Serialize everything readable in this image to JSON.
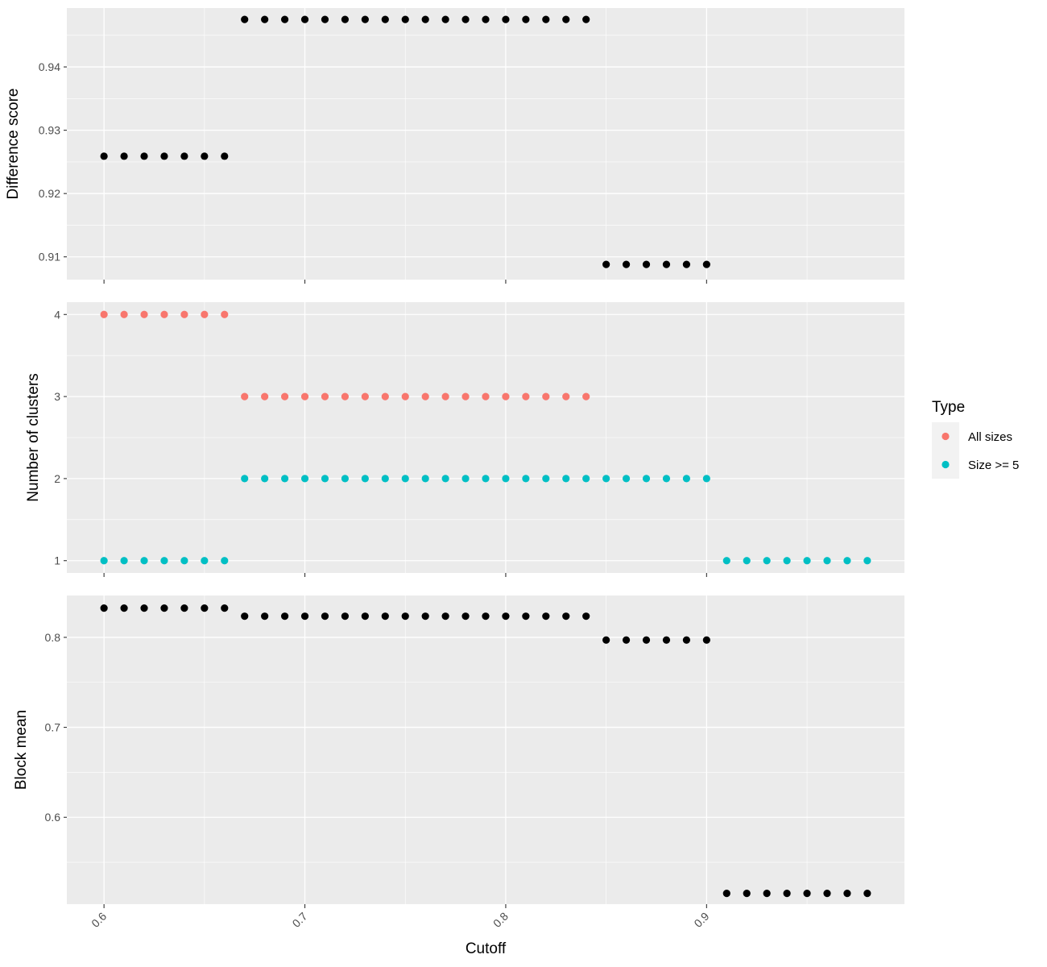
{
  "chart_data": {
    "type": "scatter",
    "x_label": "Cutoff",
    "x_ticks": [
      0.6,
      0.7,
      0.8,
      0.9
    ],
    "x_tick_labels": [
      "0.6",
      "0.7",
      "0.8",
      "0.9"
    ],
    "x_lim": [
      0.5815,
      0.9985
    ],
    "grid": true,
    "legend": {
      "title": "Type",
      "placement": "right",
      "entries": [
        {
          "label": "All sizes",
          "color": "#F8766D"
        },
        {
          "label": "Size >= 5",
          "color": "#00BFC4"
        }
      ]
    },
    "panels": [
      {
        "id": "difference",
        "ylabel": "Difference score",
        "ylim": [
          0.9064,
          0.9493
        ],
        "y_ticks": [
          0.91,
          0.92,
          0.93,
          0.94
        ],
        "y_tick_labels": [
          "0.91",
          "0.92",
          "0.93",
          "0.94"
        ],
        "series": [
          {
            "color": "#000000",
            "segments": [
              {
                "x_from": 0.6,
                "x_to": 0.66,
                "y": 0.9259
              },
              {
                "x_from": 0.67,
                "x_to": 0.84,
                "y": 0.9475
              },
              {
                "x_from": 0.85,
                "x_to": 0.9,
                "y": 0.9088
              }
            ]
          }
        ]
      },
      {
        "id": "clusters",
        "ylabel": "Number of clusters",
        "ylim": [
          0.85,
          4.15
        ],
        "y_ticks": [
          1,
          2,
          3,
          4
        ],
        "y_tick_labels": [
          "1",
          "2",
          "3",
          "4"
        ],
        "series": [
          {
            "name": "All sizes",
            "color": "#F8766D",
            "segments": [
              {
                "x_from": 0.6,
                "x_to": 0.66,
                "y": 4
              },
              {
                "x_from": 0.67,
                "x_to": 0.84,
                "y": 3
              }
            ]
          },
          {
            "name": "Size >= 5",
            "color": "#00BFC4",
            "segments": [
              {
                "x_from": 0.6,
                "x_to": 0.66,
                "y": 1
              },
              {
                "x_from": 0.67,
                "x_to": 0.9,
                "y": 2
              },
              {
                "x_from": 0.91,
                "x_to": 0.98,
                "y": 1
              }
            ]
          }
        ]
      },
      {
        "id": "blockmean",
        "ylabel": "Block mean",
        "ylim": [
          0.5035,
          0.8465
        ],
        "y_ticks": [
          0.6,
          0.7,
          0.8
        ],
        "y_tick_labels": [
          "0.6",
          "0.7",
          "0.8"
        ],
        "series": [
          {
            "color": "#000000",
            "segments": [
              {
                "x_from": 0.6,
                "x_to": 0.66,
                "y": 0.8325
              },
              {
                "x_from": 0.67,
                "x_to": 0.84,
                "y": 0.8235
              },
              {
                "x_from": 0.85,
                "x_to": 0.9,
                "y": 0.797
              },
              {
                "x_from": 0.91,
                "x_to": 0.98,
                "y": 0.5155
              }
            ]
          }
        ]
      }
    ]
  }
}
